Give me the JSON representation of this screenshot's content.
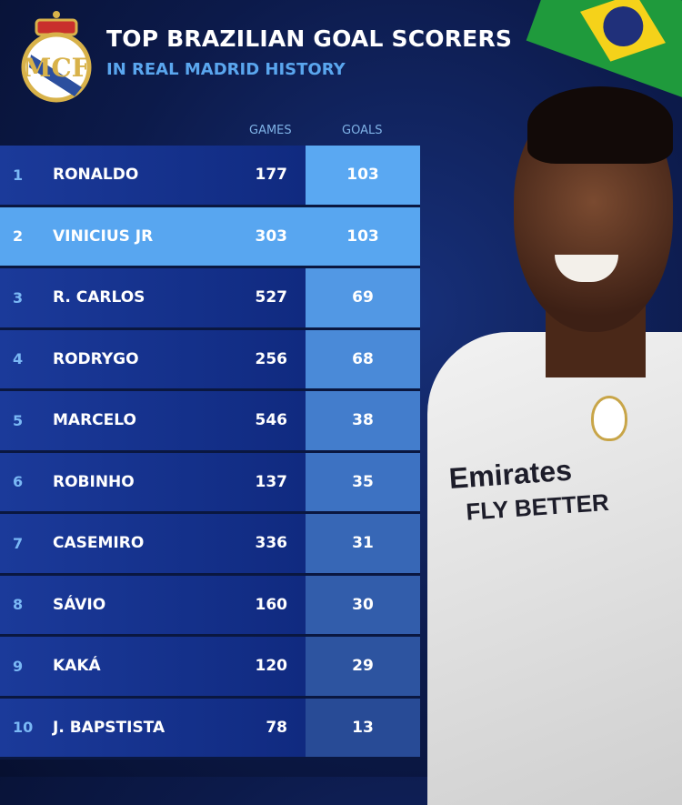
{
  "header": {
    "title": "TOP BRAZILIAN GOAL SCORERS",
    "subtitle": "IN REAL MADRID HISTORY"
  },
  "colors": {
    "accent": "#58a6f0",
    "row_dark": "#14308a",
    "background": "#0c1a4a",
    "subtitle": "#5aa6ee"
  },
  "jersey": {
    "sponsor_line1": "Emirates",
    "sponsor_line2": "FLY BETTER"
  },
  "chart_data": {
    "type": "table",
    "columns": [
      "",
      "",
      "GAMES",
      "GOALS"
    ],
    "highlight_rank": 2,
    "rows": [
      {
        "rank": "1",
        "name": "RONALDO",
        "games": "177",
        "goals": "103"
      },
      {
        "rank": "2",
        "name": "VINICIUS JR",
        "games": "303",
        "goals": "103"
      },
      {
        "rank": "3",
        "name": "R. CARLOS",
        "games": "527",
        "goals": "69"
      },
      {
        "rank": "4",
        "name": "RODRYGO",
        "games": "256",
        "goals": "68"
      },
      {
        "rank": "5",
        "name": "MARCELO",
        "games": "546",
        "goals": "38"
      },
      {
        "rank": "6",
        "name": "ROBINHO",
        "games": "137",
        "goals": "35"
      },
      {
        "rank": "7",
        "name": "CASEMIRO",
        "games": "336",
        "goals": "31"
      },
      {
        "rank": "8",
        "name": "SÁVIO",
        "games": "160",
        "goals": "30"
      },
      {
        "rank": "9",
        "name": "KAKÁ",
        "games": "120",
        "goals": "29"
      },
      {
        "rank": "10",
        "name": "J. BAPSTISTA",
        "games": "78",
        "goals": "13"
      }
    ]
  }
}
